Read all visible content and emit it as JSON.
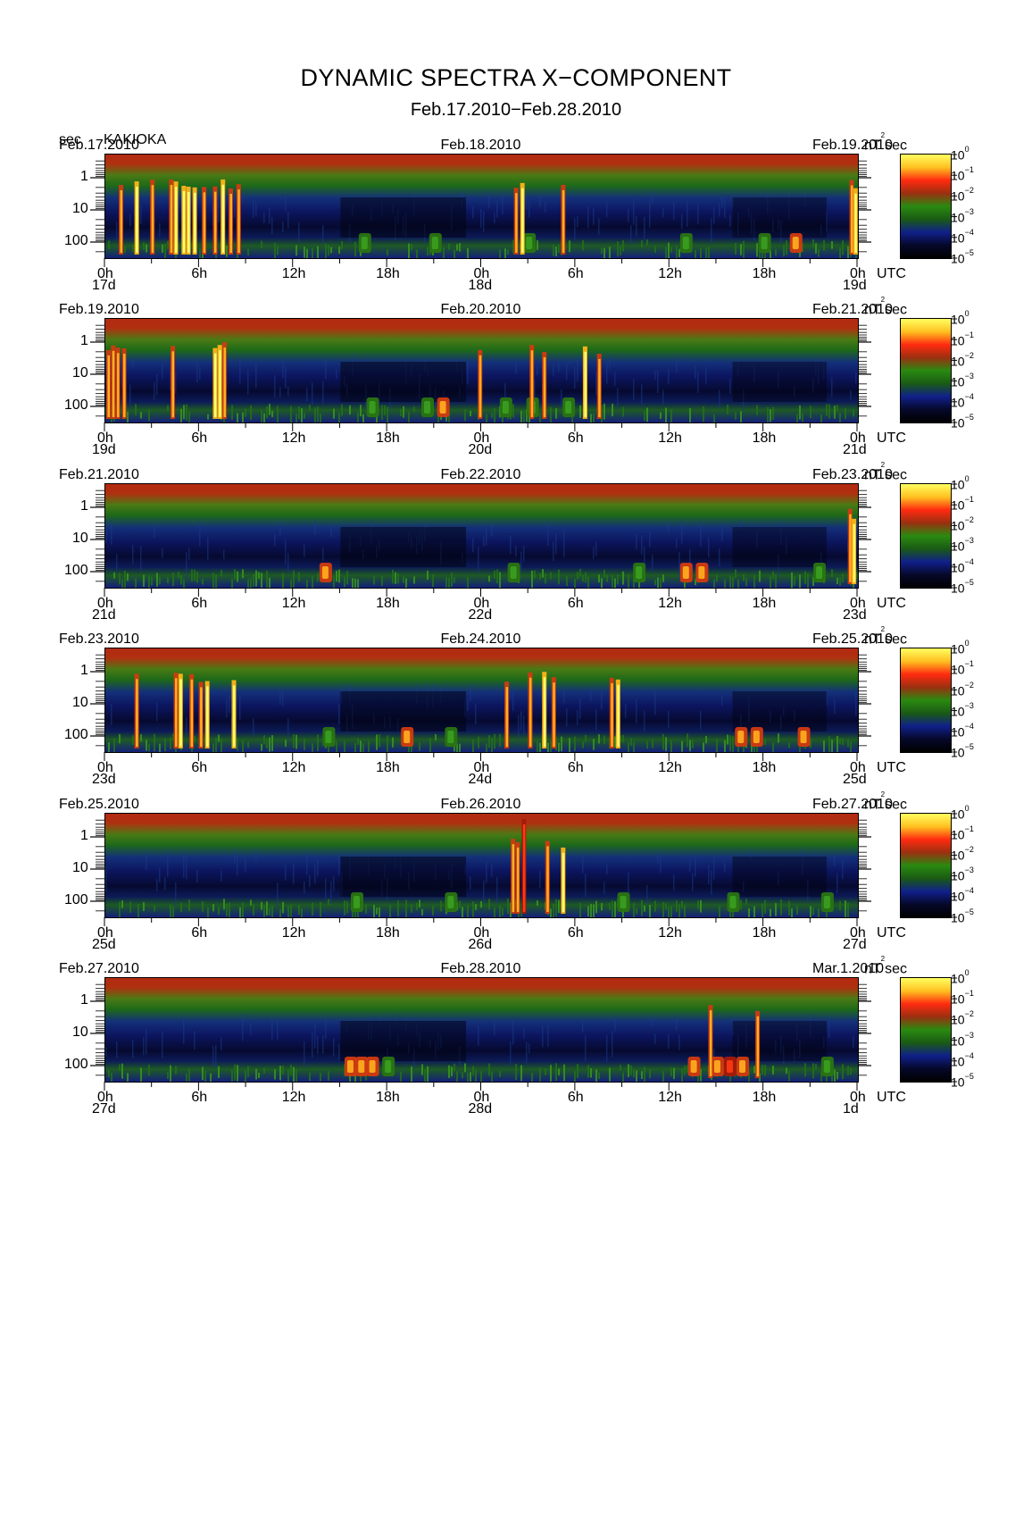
{
  "header": {
    "title": "DYNAMIC SPECTRA X−COMPONENT",
    "subtitle": "Feb.17.2010−Feb.28.2010",
    "unit_label": "sec",
    "station": "KAKIOKA"
  },
  "chart_data": {
    "type": "heatmap",
    "title": "DYNAMIC SPECTRA X−COMPONENT",
    "subtitle": "Feb.17.2010−Feb.28.2010",
    "ylabel": "sec",
    "y_scale": "log",
    "y_ticks": [
      "1",
      "10",
      "100"
    ],
    "x_ticks": [
      "0h",
      "6h",
      "12h",
      "18h",
      "0h",
      "6h",
      "12h",
      "18h",
      "0h"
    ],
    "x_unit": "UTC",
    "colorbar_unit": "nT²sec",
    "colorbar_ticks": [
      "0",
      "−1",
      "−2",
      "−3",
      "−4",
      "−5"
    ],
    "colorscale": [
      "#ffff60",
      "#ffc020",
      "#ff2a10",
      "#9a3010",
      "#2a8a10",
      "#1a5a14",
      "#10208a",
      "#06082a",
      "#000000"
    ],
    "panels": [
      {
        "date_start": "Feb.17.2010",
        "date_mid": "Feb.18.2010",
        "date_end": "Feb.19.2010",
        "day_start": "17d",
        "day_mid": "18d",
        "day_end": "19d",
        "bursts": [
          [
            1,
            "o"
          ],
          [
            2,
            "y"
          ],
          [
            3,
            "o"
          ],
          [
            4.2,
            "o"
          ],
          [
            4.5,
            "y"
          ],
          [
            5,
            "y"
          ],
          [
            5.3,
            "y"
          ],
          [
            5.7,
            "y"
          ],
          [
            6.3,
            "o"
          ],
          [
            7,
            "o"
          ],
          [
            7.5,
            "y"
          ],
          [
            8,
            "o"
          ],
          [
            8.5,
            "o"
          ],
          [
            26.2,
            "o"
          ],
          [
            26.6,
            "y"
          ],
          [
            29.2,
            "o"
          ],
          [
            47.6,
            "o"
          ],
          [
            47.85,
            "y"
          ]
        ],
        "patches": [
          [
            16.5,
            "g"
          ],
          [
            21,
            "g"
          ],
          [
            27,
            "g"
          ],
          [
            37,
            "g"
          ],
          [
            42,
            "g"
          ],
          [
            44,
            "o"
          ]
        ]
      },
      {
        "date_start": "Feb.19.2010",
        "date_mid": "Feb.20.2010",
        "date_end": "Feb.21.2010",
        "day_start": "19d",
        "day_mid": "20d",
        "day_end": "21d",
        "bursts": [
          [
            0.2,
            "o"
          ],
          [
            0.5,
            "o"
          ],
          [
            0.8,
            "o"
          ],
          [
            1.2,
            "o"
          ],
          [
            4.3,
            "o"
          ],
          [
            7,
            "y"
          ],
          [
            7.3,
            "y"
          ],
          [
            7.6,
            "o"
          ],
          [
            23.9,
            "o"
          ],
          [
            27.2,
            "o"
          ],
          [
            28,
            "o"
          ],
          [
            30.6,
            "y"
          ],
          [
            31.5,
            "o"
          ]
        ],
        "patches": [
          [
            17,
            "g"
          ],
          [
            20.5,
            "g"
          ],
          [
            21.5,
            "o"
          ],
          [
            25.5,
            "g"
          ],
          [
            27.2,
            "g"
          ],
          [
            29.5,
            "g"
          ]
        ]
      },
      {
        "date_start": "Feb.21.2010",
        "date_mid": "Feb.22.2010",
        "date_end": "Feb.23.2010",
        "day_start": "21d",
        "day_mid": "22d",
        "day_end": "23d",
        "bursts": [
          [
            47.5,
            "o"
          ],
          [
            47.75,
            "y"
          ]
        ],
        "patches": [
          [
            14,
            "o"
          ],
          [
            26,
            "g"
          ],
          [
            34,
            "g"
          ],
          [
            37,
            "o"
          ],
          [
            38,
            "o"
          ],
          [
            45.5,
            "g"
          ]
        ]
      },
      {
        "date_start": "Feb.23.2010",
        "date_mid": "Feb.24.2010",
        "date_end": "Feb.25.2010",
        "day_start": "23d",
        "day_mid": "24d",
        "day_end": "25d",
        "bursts": [
          [
            2,
            "o"
          ],
          [
            4.5,
            "o"
          ],
          [
            4.8,
            "y"
          ],
          [
            5.5,
            "o"
          ],
          [
            6.1,
            "o"
          ],
          [
            6.5,
            "y"
          ],
          [
            8.2,
            "y"
          ],
          [
            25.6,
            "o"
          ],
          [
            27.1,
            "o"
          ],
          [
            28,
            "y"
          ],
          [
            28.6,
            "o"
          ],
          [
            32.3,
            "o"
          ],
          [
            32.7,
            "y"
          ]
        ],
        "patches": [
          [
            14.2,
            "g"
          ],
          [
            19.2,
            "o"
          ],
          [
            22,
            "g"
          ],
          [
            40.5,
            "o"
          ],
          [
            41.5,
            "o"
          ],
          [
            44.5,
            "o"
          ]
        ]
      },
      {
        "date_start": "Feb.25.2010",
        "date_mid": "Feb.26.2010",
        "date_end": "Feb.27.2010",
        "day_start": "25d",
        "day_mid": "26d",
        "day_end": "27d",
        "bursts": [
          [
            26,
            "o"
          ],
          [
            26.3,
            "o"
          ],
          [
            26.7,
            "r"
          ],
          [
            28.2,
            "o"
          ],
          [
            29.2,
            "y"
          ]
        ],
        "patches": [
          [
            16,
            "g"
          ],
          [
            22,
            "g"
          ],
          [
            33,
            "g"
          ],
          [
            40,
            "g"
          ],
          [
            46,
            "g"
          ]
        ]
      },
      {
        "date_start": "Feb.27.2010",
        "date_mid": "Feb.28.2010",
        "date_end": "Mar.1.2010",
        "day_start": "27d",
        "day_mid": "28d",
        "day_end": "1d",
        "bursts": [
          [
            38.6,
            "o"
          ],
          [
            41.6,
            "o"
          ]
        ],
        "patches": [
          [
            15.6,
            "o"
          ],
          [
            16.3,
            "o"
          ],
          [
            17,
            "o"
          ],
          [
            18,
            "g"
          ],
          [
            37.5,
            "o"
          ],
          [
            39,
            "o"
          ],
          [
            39.8,
            "r"
          ],
          [
            40.6,
            "o"
          ],
          [
            46,
            "g"
          ]
        ]
      }
    ]
  }
}
